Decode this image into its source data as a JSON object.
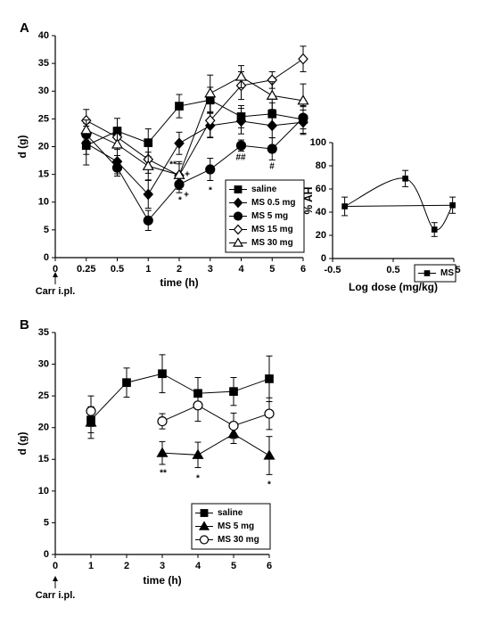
{
  "chart_data": [
    {
      "type": "line",
      "panel": "A",
      "xlabel": "time (h)",
      "ylabel": "d (g)",
      "note": "Carr i.pl.",
      "categories": [
        "0",
        "0.25",
        "0.5",
        "1",
        "2",
        "3",
        "4",
        "5",
        "6"
      ],
      "ylim": [
        0,
        40
      ],
      "yticks": [
        0,
        5,
        10,
        15,
        20,
        25,
        30,
        35,
        40
      ],
      "legend": "lower right",
      "annotations": [
        "**",
        "+",
        "*",
        "+",
        "*",
        "##",
        "#"
      ],
      "series": [
        {
          "name": "saline",
          "color": "#000000",
          "marker": "square",
          "filled": true,
          "values": [
            null,
            20.2,
            22.8,
            20.7,
            27.3,
            28.4,
            25.4,
            25.9,
            24.9
          ],
          "errors": [
            null,
            3.5,
            2.3,
            2.5,
            2.1,
            2.3,
            2.0,
            2.0,
            2.5
          ]
        },
        {
          "name": "MS 0.5 mg",
          "color": "#000000",
          "marker": "diamond",
          "filled": true,
          "values": [
            null,
            20.6,
            17.3,
            11.4,
            20.6,
            23.8,
            24.6,
            23.8,
            24.4
          ],
          "errors": [
            null,
            2.0,
            2.2,
            2.5,
            2.0,
            2.2,
            2.3,
            2.2,
            2.2
          ]
        },
        {
          "name": "MS 5 mg",
          "color": "#000000",
          "marker": "circle",
          "filled": true,
          "values": [
            null,
            22.2,
            16.2,
            6.7,
            13.2,
            15.9,
            20.2,
            19.6,
            25.2
          ],
          "errors": [
            null,
            2.0,
            1.5,
            1.8,
            1.5,
            2.0,
            1.0,
            2.0,
            2.0
          ]
        },
        {
          "name": "MS 15 mg",
          "color": "#000000",
          "marker": "diamond",
          "filled": false,
          "values": [
            null,
            24.7,
            21.7,
            17.7,
            14.8,
            24.7,
            31.0,
            32.0,
            35.8
          ],
          "errors": [
            null,
            2.0,
            1.8,
            2.5,
            2.5,
            3.0,
            2.5,
            1.5,
            2.3
          ]
        },
        {
          "name": "MS 30 mg",
          "color": "#000000",
          "marker": "triangle",
          "filled": false,
          "values": [
            null,
            23.0,
            20.4,
            16.5,
            14.9,
            29.6,
            32.6,
            29.2,
            28.3
          ],
          "errors": [
            null,
            1.8,
            2.0,
            2.5,
            2.0,
            3.3,
            2.0,
            2.5,
            3.0
          ]
        }
      ]
    },
    {
      "type": "line",
      "xlabel": "Log dose (mg/kg)",
      "ylabel": "% AH",
      "smooth": true,
      "trend_line": true,
      "x": [
        -0.3,
        0.7,
        1.18,
        1.48
      ],
      "xlim": [
        -0.5,
        1.5
      ],
      "xticks": [
        -0.5,
        0.5,
        1.5
      ],
      "ylim": [
        0,
        100
      ],
      "yticks": [
        0,
        20,
        40,
        60,
        80,
        100
      ],
      "legend": "below",
      "series": [
        {
          "name": "MS",
          "color": "#000000",
          "marker": "square",
          "filled": true,
          "values": [
            45,
            69,
            25,
            46
          ],
          "errors": [
            8,
            7,
            6,
            7
          ]
        }
      ]
    },
    {
      "type": "line",
      "panel": "B",
      "xlabel": "time (h)",
      "ylabel": "d (g)",
      "note": "Carr i.pl.",
      "categories": [
        "0",
        "1",
        "2",
        "3",
        "4",
        "5",
        "6"
      ],
      "ylim": [
        0,
        35
      ],
      "yticks": [
        0,
        5,
        10,
        15,
        20,
        25,
        30,
        35
      ],
      "legend": "lower right",
      "annotations": [
        "**",
        "*",
        "*"
      ],
      "series": [
        {
          "name": "saline",
          "color": "#000000",
          "marker": "square",
          "filled": true,
          "values": [
            null,
            21.2,
            27.1,
            28.5,
            25.4,
            25.7,
            27.7
          ],
          "errors": [
            null,
            2.0,
            2.3,
            3.0,
            2.5,
            2.2,
            3.6
          ]
        },
        {
          "name": "MS 5 mg",
          "color": "#000000",
          "marker": "triangle",
          "filled": true,
          "values": [
            null,
            20.8,
            null,
            16.0,
            15.7,
            19.0,
            15.6
          ],
          "errors": [
            null,
            2.5,
            null,
            1.8,
            2.0,
            1.5,
            3.0
          ]
        },
        {
          "name": "MS 30 mg",
          "color": "#000000",
          "marker": "circle",
          "filled": false,
          "values": [
            null,
            22.6,
            null,
            21.0,
            23.5,
            20.3,
            22.2
          ],
          "errors": [
            null,
            2.4,
            null,
            1.2,
            2.5,
            2.0,
            2.5
          ]
        }
      ]
    }
  ]
}
